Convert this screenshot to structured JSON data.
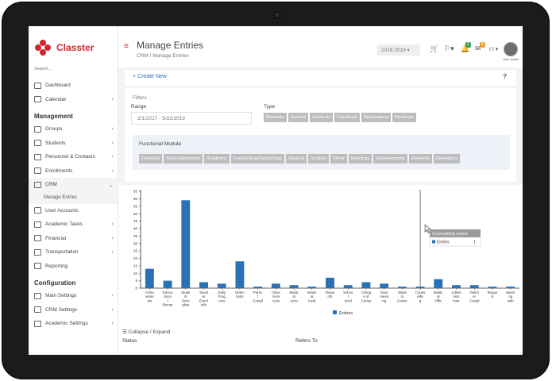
{
  "app": {
    "name": "Classter",
    "search_placeholder": "Search..."
  },
  "sidebar": {
    "items": [
      {
        "label": "Dashboard",
        "icon": "dashboard-icon"
      },
      {
        "label": "Calendar",
        "icon": "calendar-icon",
        "chevron": "‹"
      }
    ],
    "section_management": "Management",
    "management_items": [
      {
        "label": "Groups",
        "icon": "groups-icon",
        "chevron": "‹"
      },
      {
        "label": "Students",
        "icon": "students-icon",
        "chevron": "‹"
      },
      {
        "label": "Personnel & Contacts",
        "icon": "personnel-icon",
        "chevron": "‹"
      },
      {
        "label": "Enrollments",
        "icon": "enrollments-icon",
        "chevron": "‹"
      },
      {
        "label": "CRM",
        "icon": "crm-icon",
        "chevron": "⌄"
      }
    ],
    "crm_sub": "Manage Entries",
    "after_crm_items": [
      {
        "label": "User Accounts",
        "icon": "user-accounts-icon"
      },
      {
        "label": "Academic Tasks",
        "icon": "academic-tasks-icon",
        "chevron": "‹"
      },
      {
        "label": "Financial",
        "icon": "financial-icon",
        "chevron": "‹"
      },
      {
        "label": "Transportation",
        "icon": "transportation-icon",
        "chevron": "‹"
      },
      {
        "label": "Reporting",
        "icon": "reporting-icon"
      }
    ],
    "section_configuration": "Configuration",
    "configuration_items": [
      {
        "label": "Main Settings",
        "icon": "main-settings-icon",
        "chevron": "‹"
      },
      {
        "label": "CRM Settings",
        "icon": "crm-settings-icon",
        "chevron": "‹"
      },
      {
        "label": "Academic Settings",
        "icon": "academic-settings-icon",
        "chevron": "‹"
      }
    ]
  },
  "header": {
    "menu_icon": "≡",
    "title": "Manage Entries",
    "breadcrumb": "CRM / Manage Entries",
    "year": "2018 2019 ▾",
    "cart_icon": "🛒",
    "flag_icon": "⚐▾",
    "bell_icon": "🔔",
    "bell_badge": "2",
    "mail_icon": "✉",
    "mail_badge": "4",
    "user_menu": "I I ▾",
    "user_caption": "User Name"
  },
  "actions": {
    "create_new": "+ Create New",
    "help": "?"
  },
  "filters": {
    "title": "Filters",
    "range_label": "Range",
    "range_value": "2/1/2017 - 5/31/2019",
    "type_label": "Type",
    "types": [
      "Remarks",
      "Actions",
      "Incidents",
      "Feedback",
      "Applications",
      "Meetings"
    ],
    "functional_module_label": "Functional Module",
    "modules": [
      "Financial",
      "Sales/Admission",
      "Academic",
      "Counselling/Psychology",
      "Medical",
      "Incident",
      "Other",
      "Meetings",
      "Achievements",
      "Rewards",
      "Detentions"
    ]
  },
  "chart_data": {
    "type": "bar",
    "categories": [
      "Achievements",
      "Educational Remarks",
      "Student Disciplinary Remarks",
      "Teacher Event Info",
      "Daily Progress Remark",
      "Detentions",
      "Parent Complaint",
      "Classroom Action",
      "Medical Action",
      "Medical Incident",
      "Rewards",
      "School Incident",
      "Change of Consent",
      "Tutor Meeting (Full)",
      "Student Conversation",
      "Counselling action",
      "Medical Office Visit",
      "Admission Interview",
      "Teacher Complaint",
      "Request",
      "Meeting with SEN coordinator"
    ],
    "tick_labels": [
      "Achie\nveme\nnts",
      "Educa\ntiona\nl\nRemar",
      "Stude\nnt\nDisci\nplina",
      "Teach\ner\nEvent\nInfo",
      "Daily\nProg\nress",
      "Deten\ntions",
      "Paren\nt\nCompl",
      "Class\nroom\nActio",
      "Medic\nal\nActio",
      "Medic\nal\nIncid",
      "Rewa\nrds",
      "Schoo\nl\nIncid",
      "Chang\ne of\nConse",
      "Tutor\nmeeti\nng",
      "Stude\nnt\nConve",
      "Couns\nellin\ng",
      "Medic\nal\nOffic",
      "Admis\nsion\nInter",
      "Teach\ner\nCompl",
      "Reque\nst",
      "Meeti\nng\nwith"
    ],
    "series": [
      {
        "name": "Entries",
        "values": [
          13,
          5,
          59,
          4,
          3,
          18,
          1,
          3,
          2,
          1,
          7,
          2,
          4,
          3,
          1,
          1,
          6,
          2,
          2,
          1,
          1
        ]
      }
    ],
    "ylim": [
      0,
      65
    ],
    "yticks": [
      0,
      5,
      10,
      15,
      20,
      25,
      30,
      35,
      40,
      45,
      50,
      55,
      60,
      65
    ],
    "legend": "bottom",
    "bar_color": "#2a72b5",
    "tooltip": {
      "title": "Counselling action",
      "series": "Entries",
      "value": "1"
    }
  },
  "bottom": {
    "collapse_label": "Collapse / Expand",
    "col_status": "Status",
    "col_refers_to": "Refers To"
  }
}
